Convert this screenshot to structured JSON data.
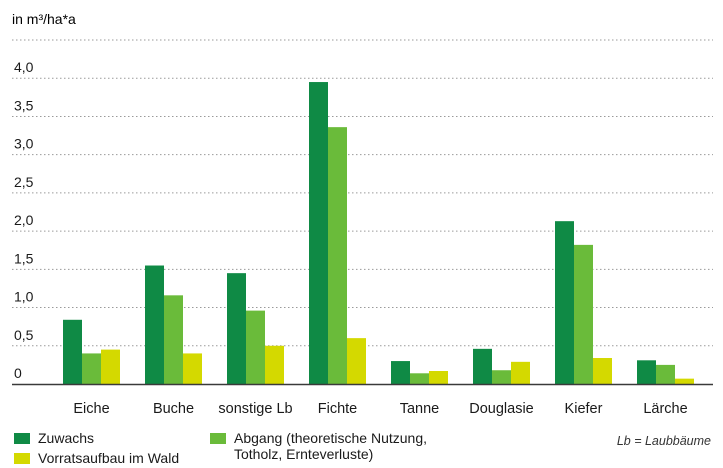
{
  "unit_label": "in m³/ha*a",
  "note": "Lb = Laubbäume",
  "colors": {
    "zuwachs": "#0f8a45",
    "abgang": "#6abb3a",
    "vorrat": "#d4d900",
    "axis": "#3a3a3a",
    "grid": "#9a9a9a"
  },
  "legend": [
    {
      "key": "zuwachs",
      "label": "Zuwachs"
    },
    {
      "key": "abgang",
      "label": "Abgang (theoretische Nutzung,",
      "label2": "Totholz, Ernteverluste)"
    },
    {
      "key": "vorrat",
      "label": "Vorratsaufbau im Wald"
    }
  ],
  "chart_data": {
    "type": "bar",
    "categories": [
      "Eiche",
      "Buche",
      "sonstige Lb",
      "Fichte",
      "Tanne",
      "Douglasie",
      "Kiefer",
      "Lärche"
    ],
    "series": [
      {
        "name": "Zuwachs",
        "values": [
          0.84,
          1.55,
          1.45,
          3.95,
          0.3,
          0.46,
          2.13,
          0.31
        ]
      },
      {
        "name": "Abgang (theoretische Nutzung, Totholz, Ernteverluste)",
        "values": [
          0.4,
          1.16,
          0.96,
          3.36,
          0.14,
          0.18,
          1.82,
          0.25
        ]
      },
      {
        "name": "Vorratsaufbau im Wald",
        "values": [
          0.45,
          0.4,
          0.5,
          0.6,
          0.17,
          0.29,
          0.34,
          0.07
        ]
      }
    ],
    "yticks": [
      "0",
      "0,5",
      "1,0",
      "1,5",
      "2,0",
      "2,5",
      "3,0",
      "3,5",
      "4,0"
    ],
    "ylim": [
      0,
      4.5
    ],
    "grid": true,
    "legend_position": "bottom"
  }
}
